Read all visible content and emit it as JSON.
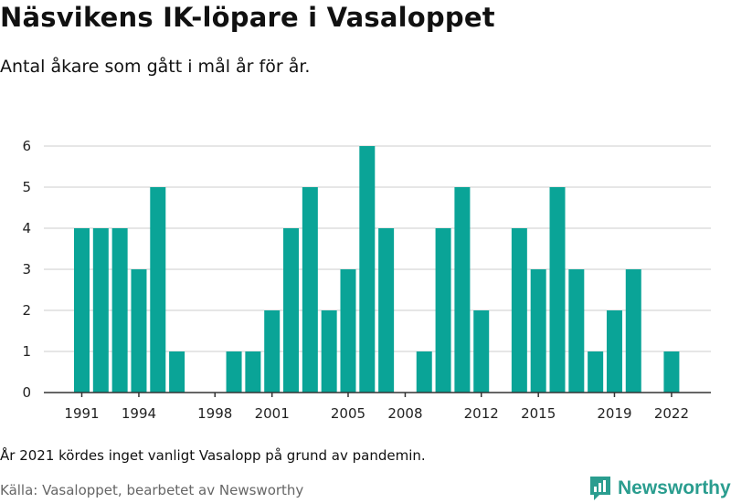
{
  "title": "Näsvikens IK-löpare i Vasaloppet",
  "subtitle": "Antal åkare som gått i mål år för år.",
  "note": "År 2021 kördes inget vanligt Vasalopp på grund av pandemin.",
  "source": "Källa: Vasaloppet, bearbetet av Newsworthy",
  "brand": {
    "name": "Newsworthy",
    "icon": "newsworthy-logo-icon",
    "color": "#2a9d8f"
  },
  "colors": {
    "bar": "#0aa497",
    "grid": "#dddddd",
    "axis": "#333333"
  },
  "chart_data": {
    "type": "bar",
    "x": [
      1991,
      1992,
      1993,
      1994,
      1995,
      1996,
      1997,
      1998,
      1999,
      2000,
      2001,
      2002,
      2003,
      2004,
      2005,
      2006,
      2007,
      2008,
      2009,
      2010,
      2011,
      2012,
      2013,
      2014,
      2015,
      2016,
      2017,
      2018,
      2019,
      2020,
      2021,
      2022
    ],
    "values": [
      4,
      4,
      4,
      3,
      5,
      1,
      0,
      0,
      1,
      1,
      2,
      4,
      5,
      2,
      3,
      6,
      4,
      0,
      1,
      4,
      5,
      2,
      0,
      4,
      3,
      5,
      3,
      1,
      2,
      3,
      0,
      1
    ],
    "xticks": [
      1991,
      1994,
      1998,
      2001,
      2005,
      2008,
      2012,
      2015,
      2019,
      2022
    ],
    "yticks": [
      0,
      1,
      2,
      3,
      4,
      5,
      6
    ],
    "ylim": [
      0,
      6
    ],
    "xlabel": "",
    "ylabel": "",
    "grid": true,
    "legend": false
  }
}
